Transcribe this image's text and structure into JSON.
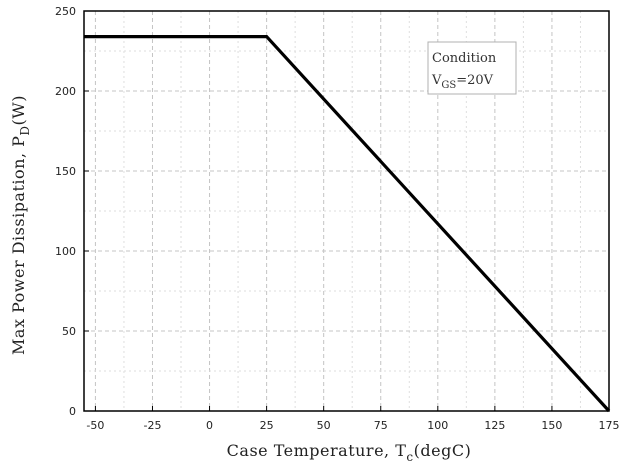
{
  "chart_data": {
    "type": "line",
    "title": "",
    "xlabel": {
      "main": "Case Temperature, T",
      "sub": "c",
      "unit": "(degC)"
    },
    "ylabel": {
      "main": "Max Power Dissipation, P",
      "sub": "D",
      "unit": "(W)"
    },
    "xlim": [
      -55,
      175
    ],
    "ylim": [
      0,
      250
    ],
    "x_ticks": [
      -50,
      -25,
      0,
      25,
      50,
      75,
      100,
      125,
      150,
      175
    ],
    "y_ticks": [
      0,
      50,
      100,
      150,
      200,
      250
    ],
    "grid": true,
    "series": [
      {
        "x": [
          -55,
          25,
          175
        ],
        "y": [
          234,
          234,
          0
        ]
      }
    ],
    "annotation": {
      "line1": "Condition",
      "line2_main": "V",
      "line2_sub": "GS",
      "line2_rest": "=20V"
    }
  }
}
